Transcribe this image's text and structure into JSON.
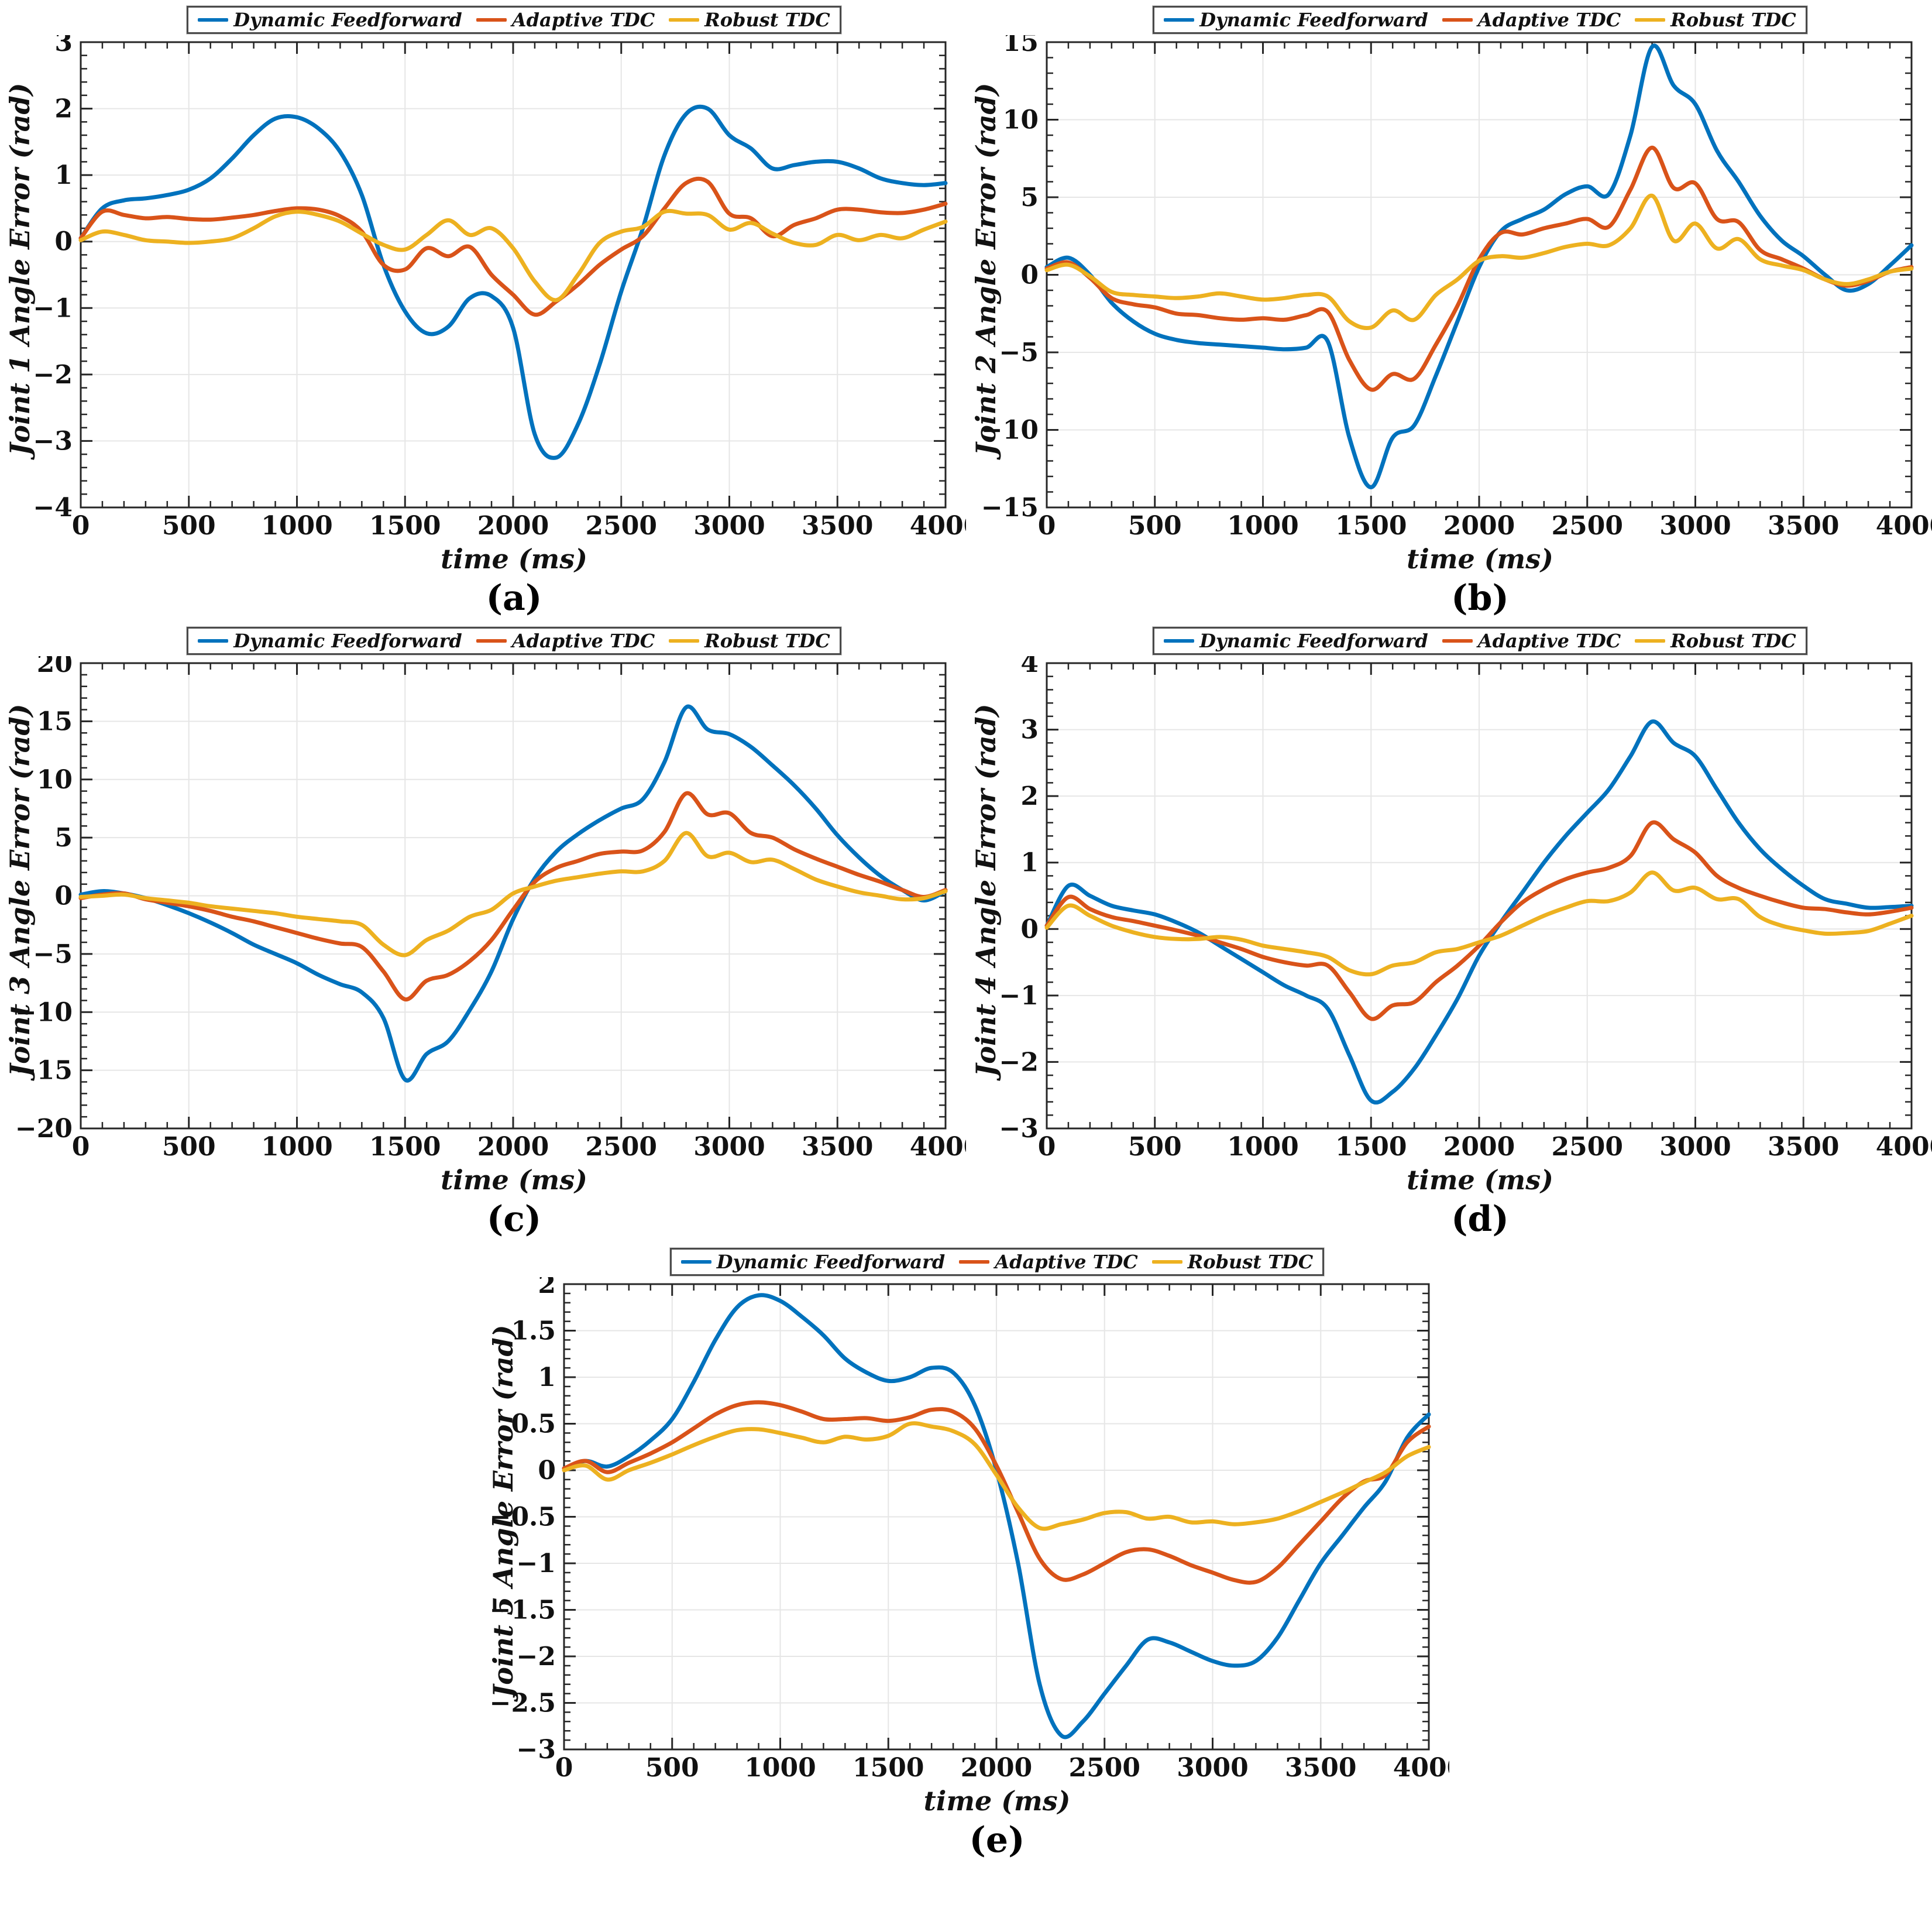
{
  "figure_caption_labels": [
    "(a)",
    "(b)",
    "(c)",
    "(d)",
    "(e)"
  ],
  "chart_data": {
    "type": "line",
    "grid": true,
    "legend_position": "top-center",
    "legend": [
      "Dynamic Feedforward",
      "Adaptive TDC",
      "Robust TDC"
    ],
    "colors": [
      "#0072BD",
      "#D95319",
      "#EDB120"
    ],
    "axis_color": "#262626",
    "grid_color": "#e6e6e6",
    "x_ms": [
      0,
      100,
      200,
      300,
      400,
      500,
      600,
      700,
      800,
      900,
      1000,
      1100,
      1200,
      1300,
      1400,
      1500,
      1600,
      1700,
      1800,
      1900,
      2000,
      2100,
      2200,
      2300,
      2400,
      2500,
      2600,
      2700,
      2800,
      2900,
      3000,
      3100,
      3200,
      3300,
      3400,
      3500,
      3600,
      3700,
      3800,
      3900,
      4000
    ],
    "xtick_step": 500,
    "xtick_minor": 100,
    "charts": [
      {
        "caption": "(a)",
        "ylabel": "Joint 1 Angle Error (rad)",
        "xlabel": "time (ms)",
        "xlim": [
          0,
          4000
        ],
        "ylim": [
          -4,
          3
        ],
        "ytick_step": 1,
        "ytick_minor": 0.2,
        "series": [
          {
            "name": "Dynamic Feedforward",
            "values": [
              0.05,
              0.5,
              0.62,
              0.65,
              0.7,
              0.78,
              0.95,
              1.25,
              1.6,
              1.85,
              1.87,
              1.7,
              1.35,
              0.7,
              -0.35,
              -1.05,
              -1.38,
              -1.28,
              -0.85,
              -0.82,
              -1.3,
              -2.9,
              -3.25,
              -2.75,
              -1.85,
              -0.75,
              0.2,
              1.3,
              1.92,
              2.0,
              1.6,
              1.4,
              1.1,
              1.15,
              1.2,
              1.2,
              1.1,
              0.95,
              0.88,
              0.85,
              0.88
            ]
          },
          {
            "name": "Adaptive TDC",
            "values": [
              0.05,
              0.45,
              0.4,
              0.35,
              0.37,
              0.34,
              0.33,
              0.36,
              0.4,
              0.46,
              0.5,
              0.48,
              0.38,
              0.15,
              -0.35,
              -0.42,
              -0.1,
              -0.22,
              -0.08,
              -0.5,
              -0.8,
              -1.1,
              -0.9,
              -0.65,
              -0.35,
              -0.12,
              0.08,
              0.5,
              0.88,
              0.9,
              0.42,
              0.35,
              0.08,
              0.25,
              0.35,
              0.48,
              0.48,
              0.44,
              0.43,
              0.48,
              0.57
            ]
          },
          {
            "name": "Robust TDC",
            "values": [
              0.02,
              0.15,
              0.1,
              0.02,
              0.0,
              -0.02,
              0.0,
              0.05,
              0.2,
              0.38,
              0.45,
              0.4,
              0.3,
              0.12,
              -0.05,
              -0.12,
              0.1,
              0.32,
              0.1,
              0.2,
              -0.1,
              -0.6,
              -0.88,
              -0.5,
              -0.02,
              0.15,
              0.22,
              0.45,
              0.42,
              0.4,
              0.18,
              0.28,
              0.12,
              -0.02,
              -0.05,
              0.1,
              0.02,
              0.1,
              0.05,
              0.18,
              0.3
            ]
          }
        ]
      },
      {
        "caption": "(b)",
        "ylabel": "Joint 2 Angle Error (rad)",
        "xlabel": "time (ms)",
        "xlim": [
          0,
          4000
        ],
        "ylim": [
          -15,
          15
        ],
        "ytick_step": 5,
        "ytick_minor": 1,
        "series": [
          {
            "name": "Dynamic Feedforward",
            "values": [
              0.5,
              1.1,
              0.0,
              -1.8,
              -3.0,
              -3.8,
              -4.2,
              -4.4,
              -4.5,
              -4.6,
              -4.7,
              -4.8,
              -4.7,
              -4.3,
              -10.5,
              -13.7,
              -10.5,
              -9.7,
              -6.5,
              -3.0,
              0.5,
              2.8,
              3.6,
              4.2,
              5.2,
              5.7,
              5.2,
              9.0,
              14.7,
              12.2,
              11.0,
              8.0,
              6.0,
              3.8,
              2.2,
              1.2,
              0.0,
              -1.0,
              -0.6,
              0.6,
              1.9
            ]
          },
          {
            "name": "Adaptive TDC",
            "values": [
              0.4,
              0.8,
              -0.2,
              -1.5,
              -1.9,
              -2.1,
              -2.5,
              -2.6,
              -2.8,
              -2.9,
              -2.8,
              -2.9,
              -2.6,
              -2.4,
              -5.5,
              -7.4,
              -6.4,
              -6.7,
              -4.5,
              -2.0,
              1.0,
              2.7,
              2.6,
              3.0,
              3.3,
              3.6,
              3.1,
              5.5,
              8.2,
              5.6,
              5.9,
              3.6,
              3.4,
              1.6,
              1.0,
              0.4,
              -0.3,
              -0.7,
              -0.4,
              0.2,
              0.5
            ]
          },
          {
            "name": "Robust TDC",
            "values": [
              0.3,
              0.65,
              -0.1,
              -1.1,
              -1.3,
              -1.4,
              -1.5,
              -1.4,
              -1.2,
              -1.4,
              -1.6,
              -1.5,
              -1.3,
              -1.4,
              -3.0,
              -3.4,
              -2.3,
              -2.9,
              -1.3,
              -0.3,
              0.9,
              1.2,
              1.1,
              1.4,
              1.8,
              2.0,
              1.9,
              3.0,
              5.1,
              2.2,
              3.3,
              1.7,
              2.3,
              1.0,
              0.6,
              0.3,
              -0.3,
              -0.6,
              -0.3,
              0.2,
              0.4
            ]
          }
        ]
      },
      {
        "caption": "(c)",
        "ylabel": "Joint 3 Angle Error (rad)",
        "xlabel": "time (ms)",
        "xlim": [
          0,
          4000
        ],
        "ylim": [
          -20,
          20
        ],
        "ytick_step": 5,
        "ytick_minor": 1,
        "series": [
          {
            "name": "Dynamic Feedforward",
            "values": [
              0.1,
              0.4,
              0.2,
              -0.2,
              -0.8,
              -1.5,
              -2.3,
              -3.2,
              -4.2,
              -5.0,
              -5.8,
              -6.8,
              -7.6,
              -8.3,
              -10.5,
              -15.8,
              -13.6,
              -12.5,
              -9.8,
              -6.5,
              -2.0,
              1.5,
              3.8,
              5.3,
              6.5,
              7.5,
              8.3,
              11.5,
              16.2,
              14.3,
              13.9,
              12.8,
              11.2,
              9.5,
              7.5,
              5.2,
              3.3,
              1.7,
              0.5,
              -0.4,
              0.4
            ]
          },
          {
            "name": "Adaptive TDC",
            "values": [
              -0.2,
              0.1,
              0.2,
              -0.3,
              -0.6,
              -0.9,
              -1.3,
              -1.8,
              -2.2,
              -2.7,
              -3.2,
              -3.7,
              -4.1,
              -4.4,
              -6.5,
              -8.9,
              -7.3,
              -6.8,
              -5.6,
              -3.8,
              -1.2,
              1.2,
              2.4,
              3.0,
              3.6,
              3.8,
              3.9,
              5.5,
              8.8,
              7.0,
              7.1,
              5.4,
              5.0,
              4.0,
              3.2,
              2.5,
              1.8,
              1.2,
              0.5,
              -0.1,
              0.5
            ]
          },
          {
            "name": "Robust TDC",
            "values": [
              -0.1,
              0.0,
              0.1,
              -0.2,
              -0.4,
              -0.6,
              -0.9,
              -1.1,
              -1.3,
              -1.5,
              -1.8,
              -2.0,
              -2.2,
              -2.5,
              -4.2,
              -5.1,
              -3.8,
              -3.0,
              -1.8,
              -1.2,
              0.2,
              0.8,
              1.3,
              1.6,
              1.9,
              2.1,
              2.1,
              3.0,
              5.4,
              3.4,
              3.7,
              2.9,
              3.1,
              2.3,
              1.4,
              0.8,
              0.3,
              0.0,
              -0.3,
              -0.2,
              0.4
            ]
          }
        ]
      },
      {
        "caption": "(d)",
        "ylabel": "Joint 4 Angle Error (rad)",
        "xlabel": "time (ms)",
        "xlim": [
          0,
          4000
        ],
        "ylim": [
          -3,
          4
        ],
        "ytick_step": 1,
        "ytick_minor": 0.2,
        "series": [
          {
            "name": "Dynamic Feedforward",
            "values": [
              0.05,
              0.65,
              0.5,
              0.35,
              0.28,
              0.22,
              0.1,
              -0.05,
              -0.25,
              -0.45,
              -0.65,
              -0.85,
              -1.0,
              -1.2,
              -1.9,
              -2.58,
              -2.45,
              -2.1,
              -1.6,
              -1.05,
              -0.4,
              0.1,
              0.55,
              1.0,
              1.4,
              1.75,
              2.1,
              2.6,
              3.12,
              2.8,
              2.6,
              2.1,
              1.6,
              1.2,
              0.9,
              0.65,
              0.45,
              0.38,
              0.32,
              0.33,
              0.35
            ]
          },
          {
            "name": "Adaptive TDC",
            "values": [
              0.05,
              0.48,
              0.3,
              0.18,
              0.12,
              0.05,
              -0.02,
              -0.1,
              -0.2,
              -0.3,
              -0.42,
              -0.5,
              -0.55,
              -0.55,
              -0.95,
              -1.35,
              -1.15,
              -1.1,
              -0.8,
              -0.55,
              -0.25,
              0.1,
              0.4,
              0.6,
              0.75,
              0.85,
              0.92,
              1.1,
              1.6,
              1.35,
              1.15,
              0.8,
              0.62,
              0.5,
              0.4,
              0.32,
              0.3,
              0.25,
              0.22,
              0.26,
              0.32
            ]
          },
          {
            "name": "Robust TDC",
            "values": [
              0.02,
              0.35,
              0.2,
              0.05,
              -0.05,
              -0.12,
              -0.15,
              -0.15,
              -0.12,
              -0.16,
              -0.25,
              -0.3,
              -0.35,
              -0.42,
              -0.62,
              -0.68,
              -0.55,
              -0.5,
              -0.35,
              -0.3,
              -0.2,
              -0.1,
              0.05,
              0.2,
              0.32,
              0.42,
              0.42,
              0.55,
              0.85,
              0.58,
              0.62,
              0.45,
              0.45,
              0.18,
              0.05,
              -0.02,
              -0.07,
              -0.06,
              -0.03,
              0.08,
              0.2
            ]
          }
        ]
      },
      {
        "caption": "(e)",
        "ylabel": "Joint 5 Angle Error (rad)",
        "xlabel": "time (ms)",
        "xlim": [
          0,
          4000
        ],
        "ylim": [
          -3,
          2
        ],
        "ytick_step": 0.5,
        "ytick_minor": 0.1,
        "series": [
          {
            "name": "Dynamic Feedforward",
            "values": [
              0.02,
              0.1,
              0.04,
              0.15,
              0.32,
              0.55,
              0.95,
              1.4,
              1.75,
              1.88,
              1.82,
              1.65,
              1.45,
              1.2,
              1.05,
              0.96,
              1.0,
              1.1,
              1.05,
              0.7,
              0.0,
              -1.0,
              -2.3,
              -2.85,
              -2.7,
              -2.4,
              -2.1,
              -1.82,
              -1.85,
              -1.95,
              -2.05,
              -2.1,
              -2.05,
              -1.8,
              -1.4,
              -1.0,
              -0.7,
              -0.4,
              -0.12,
              0.35,
              0.6
            ]
          },
          {
            "name": "Adaptive TDC",
            "values": [
              0.02,
              0.1,
              -0.02,
              0.08,
              0.18,
              0.3,
              0.45,
              0.6,
              0.7,
              0.73,
              0.7,
              0.63,
              0.55,
              0.55,
              0.56,
              0.53,
              0.57,
              0.65,
              0.63,
              0.45,
              0.05,
              -0.45,
              -0.95,
              -1.17,
              -1.12,
              -1.0,
              -0.88,
              -0.85,
              -0.92,
              -1.02,
              -1.1,
              -1.18,
              -1.2,
              -1.05,
              -0.8,
              -0.55,
              -0.3,
              -0.12,
              -0.05,
              0.3,
              0.47
            ]
          },
          {
            "name": "Robust TDC",
            "values": [
              0.0,
              0.05,
              -0.1,
              0.0,
              0.08,
              0.17,
              0.27,
              0.36,
              0.43,
              0.44,
              0.4,
              0.35,
              0.3,
              0.36,
              0.33,
              0.37,
              0.5,
              0.47,
              0.42,
              0.28,
              -0.05,
              -0.4,
              -0.62,
              -0.58,
              -0.53,
              -0.46,
              -0.45,
              -0.52,
              -0.5,
              -0.56,
              -0.55,
              -0.58,
              -0.56,
              -0.52,
              -0.44,
              -0.34,
              -0.24,
              -0.13,
              -0.02,
              0.15,
              0.25
            ]
          }
        ]
      }
    ]
  }
}
